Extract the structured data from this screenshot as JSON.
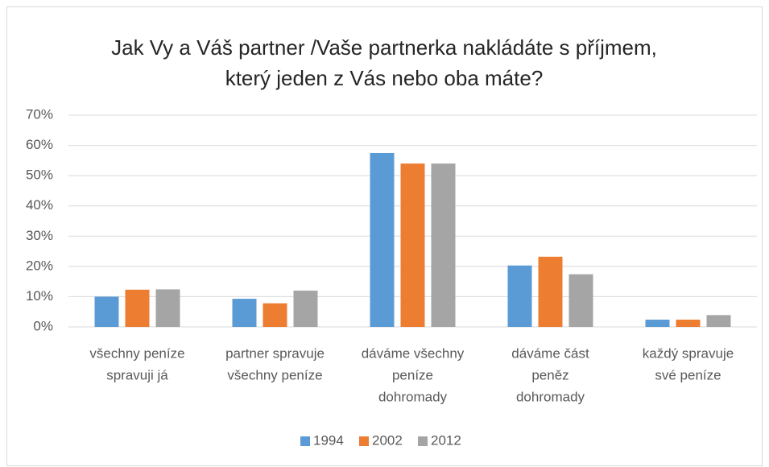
{
  "chart_data": {
    "type": "bar",
    "title": "Jak Vy a Váš partner /Vaše partnerka nakládáte s příjmem, který jeden z Vás nebo oba máte?",
    "categories": [
      [
        "všechny peníze",
        "spravuji já"
      ],
      [
        "partner spravuje",
        "všechny peníze"
      ],
      [
        "dáváme všechny",
        "peníze",
        "dohromady"
      ],
      [
        "dáváme část",
        "peněz",
        "dohromady"
      ],
      [
        "každý spravuje",
        "své peníze"
      ]
    ],
    "series": [
      {
        "name": "1994",
        "color": "#5b9bd5",
        "values": [
          10.0,
          9.3,
          57.5,
          20.3,
          2.4
        ]
      },
      {
        "name": "2002",
        "color": "#ed7d31",
        "values": [
          12.3,
          7.8,
          54.0,
          23.2,
          2.4
        ]
      },
      {
        "name": "2012",
        "color": "#a5a5a5",
        "values": [
          12.4,
          12.0,
          54.0,
          17.4,
          3.9
        ]
      }
    ],
    "ylim": [
      0,
      70
    ],
    "yticks": [
      {
        "value": 0,
        "label": "0%"
      },
      {
        "value": 10,
        "label": "10%"
      },
      {
        "value": 20,
        "label": "20%"
      },
      {
        "value": 30,
        "label": "30%"
      },
      {
        "value": 40,
        "label": "40%"
      },
      {
        "value": 50,
        "label": "50%"
      },
      {
        "value": 60,
        "label": "60%"
      },
      {
        "value": 70,
        "label": "70%"
      }
    ],
    "grid": true,
    "legend": "bottom"
  }
}
